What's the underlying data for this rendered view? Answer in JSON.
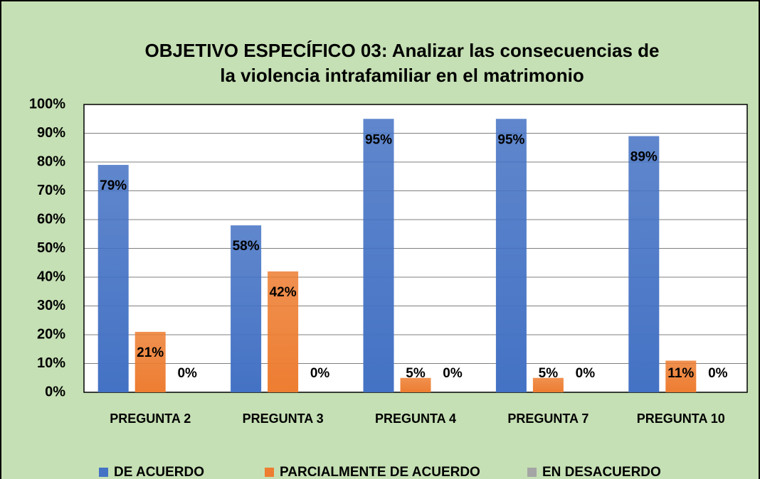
{
  "chart_data": {
    "type": "bar",
    "title": [
      "OBJETIVO ESPECÍFICO 03: Analizar las consecuencias de",
      "la violencia intrafamiliar en el matrimonio"
    ],
    "categories": [
      "PREGUNTA 2",
      "PREGUNTA 3",
      "PREGUNTA 4",
      "PREGUNTA 7",
      "PREGUNTA 10"
    ],
    "series": [
      {
        "name": "DE ACUERDO",
        "color": "#4472c4",
        "values": [
          79,
          58,
          95,
          95,
          89
        ],
        "value_labels": [
          "79%",
          "58%",
          "95%",
          "95%",
          "89%"
        ]
      },
      {
        "name": "PARCIALMENTE DE ACUERDO",
        "color": "#ed7d31",
        "values": [
          21,
          42,
          5,
          5,
          11
        ],
        "value_labels": [
          "21%",
          "42%",
          "5%",
          "5%",
          "11%"
        ]
      },
      {
        "name": "EN DESACUERDO",
        "color": "#a5a5a5",
        "values": [
          0,
          0,
          0,
          0,
          0
        ],
        "value_labels": [
          "0%",
          "0%",
          "0%",
          "0%",
          "0%"
        ]
      }
    ],
    "ylim": [
      0,
      100
    ],
    "yticks": [
      {
        "value": 0,
        "label": "0%"
      },
      {
        "value": 10,
        "label": "10%"
      },
      {
        "value": 20,
        "label": "20%"
      },
      {
        "value": 30,
        "label": "30%"
      },
      {
        "value": 40,
        "label": "40%"
      },
      {
        "value": 50,
        "label": "50%"
      },
      {
        "value": 60,
        "label": "60%"
      },
      {
        "value": 70,
        "label": "70%"
      },
      {
        "value": 80,
        "label": "80%"
      },
      {
        "value": 90,
        "label": "90%"
      },
      {
        "value": 100,
        "label": "100%"
      }
    ],
    "grid": true,
    "legend": "bottom"
  }
}
